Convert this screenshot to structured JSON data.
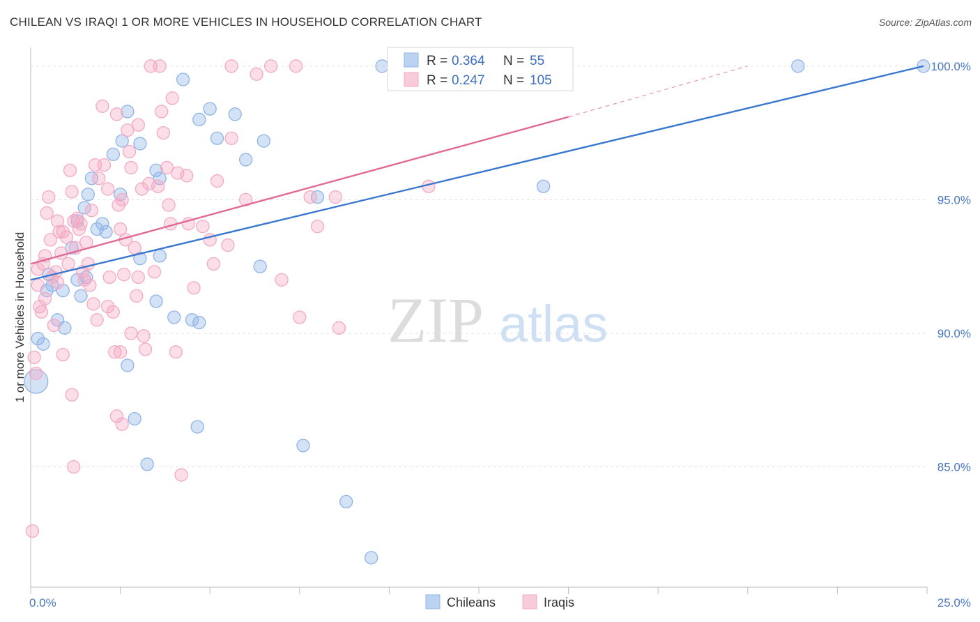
{
  "title": "CHILEAN VS IRAQI 1 OR MORE VEHICLES IN HOUSEHOLD CORRELATION CHART",
  "source": "Source: ZipAtlas.com",
  "watermark": {
    "zip": "ZIP",
    "atlas": "atlas"
  },
  "chart_data": {
    "type": "scatter",
    "title": "CHILEAN VS IRAQI 1 OR MORE VEHICLES IN HOUSEHOLD CORRELATION CHART",
    "xlabel": "",
    "ylabel": "1 or more Vehicles in Household",
    "xlim": [
      0,
      25
    ],
    "ylim": [
      80.5,
      100.7
    ],
    "x_tick_labels": {
      "min": "0.0%",
      "max": "25.0%"
    },
    "y_ticks": [
      {
        "value": 100,
        "label": "100.0%"
      },
      {
        "value": 95,
        "label": "95.0%"
      },
      {
        "value": 90,
        "label": "90.0%"
      },
      {
        "value": 85,
        "label": "85.0%"
      }
    ],
    "grid": "horizontal dashed",
    "legend_placement": "top-center",
    "legend": [
      {
        "name": "Chileans",
        "r_label": "R =",
        "r": "0.364",
        "n_label": "N =",
        "n": "55",
        "color": "#8fb4e8",
        "line_color": "#3a78d0"
      },
      {
        "name": "Iraqis",
        "r_label": "R =",
        "r": "0.247",
        "n_label": "N =",
        "n": "105",
        "color": "#f4a9c2",
        "line_color": "#e06a95"
      }
    ],
    "series": [
      {
        "name": "Chileans",
        "color": "#8fb4e8",
        "trend": {
          "x0": 0,
          "y0": 92.0,
          "x1": 24.9,
          "y1": 100.0
        },
        "points": [
          [
            0.2,
            89.8
          ],
          [
            0.35,
            89.6
          ],
          [
            0.5,
            92.2
          ],
          [
            0.45,
            91.6
          ],
          [
            0.9,
            91.6
          ],
          [
            1.3,
            92.0
          ],
          [
            1.4,
            91.4
          ],
          [
            0.95,
            90.2
          ],
          [
            0.75,
            90.5
          ],
          [
            1.55,
            92.1
          ],
          [
            1.3,
            94.2
          ],
          [
            1.5,
            94.7
          ],
          [
            1.6,
            95.2
          ],
          [
            1.7,
            95.8
          ],
          [
            2.0,
            94.1
          ],
          [
            2.1,
            93.8
          ],
          [
            1.85,
            93.9
          ],
          [
            2.5,
            95.2
          ],
          [
            2.3,
            96.7
          ],
          [
            2.55,
            97.2
          ],
          [
            2.7,
            98.3
          ],
          [
            3.05,
            97.1
          ],
          [
            3.5,
            96.1
          ],
          [
            3.6,
            95.8
          ],
          [
            3.05,
            92.8
          ],
          [
            3.5,
            91.2
          ],
          [
            3.6,
            92.9
          ],
          [
            4.0,
            90.6
          ],
          [
            4.5,
            90.5
          ],
          [
            4.7,
            90.4
          ],
          [
            4.25,
            99.5
          ],
          [
            4.7,
            98.0
          ],
          [
            5.0,
            98.4
          ],
          [
            5.2,
            97.3
          ],
          [
            5.7,
            98.2
          ],
          [
            6.0,
            96.5
          ],
          [
            6.5,
            97.2
          ],
          [
            6.4,
            92.5
          ],
          [
            8.0,
            95.1
          ],
          [
            2.7,
            88.8
          ],
          [
            2.9,
            86.8
          ],
          [
            3.25,
            85.1
          ],
          [
            4.65,
            86.5
          ],
          [
            7.6,
            85.8
          ],
          [
            8.8,
            83.7
          ],
          [
            9.5,
            81.6
          ],
          [
            9.8,
            100.0
          ],
          [
            12.8,
            100.0
          ],
          [
            13.9,
            100.0
          ],
          [
            14.3,
            95.5
          ],
          [
            21.4,
            100.0
          ],
          [
            24.9,
            100.0
          ],
          [
            0.15,
            88.2
          ],
          [
            1.15,
            93.2
          ],
          [
            0.6,
            91.8
          ]
        ]
      },
      {
        "name": "Iraqis",
        "color": "#f4a9c2",
        "trend": {
          "x0": 0,
          "y0": 92.6,
          "x1": 15.0,
          "y1": 98.1,
          "dashed_to_x": 20.0,
          "dashed_to_y": 100.0
        },
        "points": [
          [
            0.1,
            89.1
          ],
          [
            0.15,
            88.5
          ],
          [
            0.2,
            91.8
          ],
          [
            0.25,
            91.0
          ],
          [
            0.3,
            90.8
          ],
          [
            0.35,
            92.6
          ],
          [
            0.4,
            92.9
          ],
          [
            0.45,
            94.5
          ],
          [
            0.5,
            95.1
          ],
          [
            0.55,
            93.5
          ],
          [
            0.6,
            92.1
          ],
          [
            0.7,
            92.3
          ],
          [
            0.75,
            94.2
          ],
          [
            0.8,
            93.8
          ],
          [
            0.85,
            93.0
          ],
          [
            0.9,
            89.2
          ],
          [
            1.0,
            93.6
          ],
          [
            1.05,
            92.6
          ],
          [
            1.1,
            96.1
          ],
          [
            1.15,
            95.3
          ],
          [
            1.2,
            94.2
          ],
          [
            1.3,
            94.3
          ],
          [
            1.4,
            94.1
          ],
          [
            1.45,
            92.3
          ],
          [
            1.55,
            93.4
          ],
          [
            1.6,
            92.6
          ],
          [
            1.65,
            91.8
          ],
          [
            1.7,
            94.6
          ],
          [
            1.8,
            96.3
          ],
          [
            1.9,
            95.8
          ],
          [
            2.0,
            98.5
          ],
          [
            2.05,
            96.3
          ],
          [
            2.15,
            95.4
          ],
          [
            2.2,
            92.1
          ],
          [
            2.3,
            90.8
          ],
          [
            2.35,
            89.3
          ],
          [
            2.4,
            98.2
          ],
          [
            2.45,
            94.8
          ],
          [
            2.5,
            93.9
          ],
          [
            2.55,
            95.0
          ],
          [
            2.6,
            92.2
          ],
          [
            2.7,
            97.6
          ],
          [
            2.75,
            96.8
          ],
          [
            2.8,
            96.2
          ],
          [
            2.9,
            93.2
          ],
          [
            3.0,
            97.8
          ],
          [
            3.1,
            95.4
          ],
          [
            3.15,
            89.9
          ],
          [
            3.2,
            89.4
          ],
          [
            3.3,
            95.6
          ],
          [
            3.45,
            92.3
          ],
          [
            3.55,
            95.5
          ],
          [
            3.65,
            98.3
          ],
          [
            3.7,
            97.5
          ],
          [
            3.8,
            96.2
          ],
          [
            3.85,
            94.8
          ],
          [
            3.9,
            94.1
          ],
          [
            3.95,
            98.8
          ],
          [
            4.05,
            89.3
          ],
          [
            4.1,
            96.0
          ],
          [
            4.35,
            95.9
          ],
          [
            4.4,
            94.1
          ],
          [
            4.55,
            91.7
          ],
          [
            4.8,
            94.0
          ],
          [
            5.0,
            93.5
          ],
          [
            5.1,
            92.6
          ],
          [
            5.2,
            95.7
          ],
          [
            5.5,
            93.3
          ],
          [
            5.6,
            97.3
          ],
          [
            6.0,
            95.0
          ],
          [
            6.3,
            99.7
          ],
          [
            6.7,
            100.0
          ],
          [
            7.0,
            92.0
          ],
          [
            7.5,
            90.6
          ],
          [
            7.8,
            95.1
          ],
          [
            8.0,
            94.0
          ],
          [
            8.5,
            95.1
          ],
          [
            8.6,
            90.2
          ],
          [
            11.1,
            95.5
          ],
          [
            2.4,
            86.9
          ],
          [
            2.55,
            86.6
          ],
          [
            1.15,
            87.7
          ],
          [
            1.2,
            85.0
          ],
          [
            4.2,
            84.7
          ],
          [
            0.05,
            82.6
          ],
          [
            2.5,
            89.3
          ],
          [
            3.0,
            92.1
          ],
          [
            3.35,
            100.0
          ],
          [
            3.6,
            100.0
          ],
          [
            5.6,
            100.0
          ],
          [
            7.4,
            100.0
          ],
          [
            1.35,
            93.9
          ],
          [
            0.65,
            90.3
          ],
          [
            1.75,
            91.1
          ],
          [
            2.15,
            91.0
          ],
          [
            1.5,
            92.0
          ],
          [
            0.9,
            93.8
          ],
          [
            2.8,
            90.0
          ],
          [
            0.2,
            92.4
          ],
          [
            0.4,
            91.3
          ],
          [
            1.25,
            93.2
          ],
          [
            2.65,
            93.5
          ],
          [
            1.85,
            90.5
          ],
          [
            0.75,
            91.9
          ],
          [
            2.95,
            91.4
          ]
        ]
      }
    ]
  }
}
